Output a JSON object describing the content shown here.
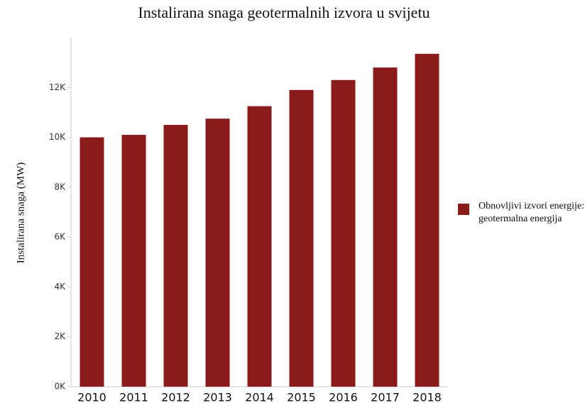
{
  "chart_data": {
    "type": "bar",
    "title": "Instalirana snaga geotermalnih izvora u svijetu",
    "y_label": "Instalirana snaga (MW)",
    "categories": [
      "2010",
      "2011",
      "2012",
      "2013",
      "2014",
      "2015",
      "2016",
      "2017",
      "2018"
    ],
    "series": [
      {
        "name": "Obnovljivi izvori energije: geotermalna energija",
        "color": "#8b1a1a",
        "values": [
          10000,
          10100,
          10500,
          10750,
          11250,
          11900,
          12300,
          12800,
          13350
        ]
      }
    ],
    "ylim": [
      0,
      14000
    ],
    "yticks": [
      {
        "value": 0,
        "label": "0K"
      },
      {
        "value": 2000,
        "label": "2K"
      },
      {
        "value": 4000,
        "label": "4K"
      },
      {
        "value": 6000,
        "label": "6K"
      },
      {
        "value": 8000,
        "label": "8K"
      },
      {
        "value": 10000,
        "label": "10K"
      },
      {
        "value": 12000,
        "label": "12K"
      }
    ],
    "legend": "right"
  }
}
